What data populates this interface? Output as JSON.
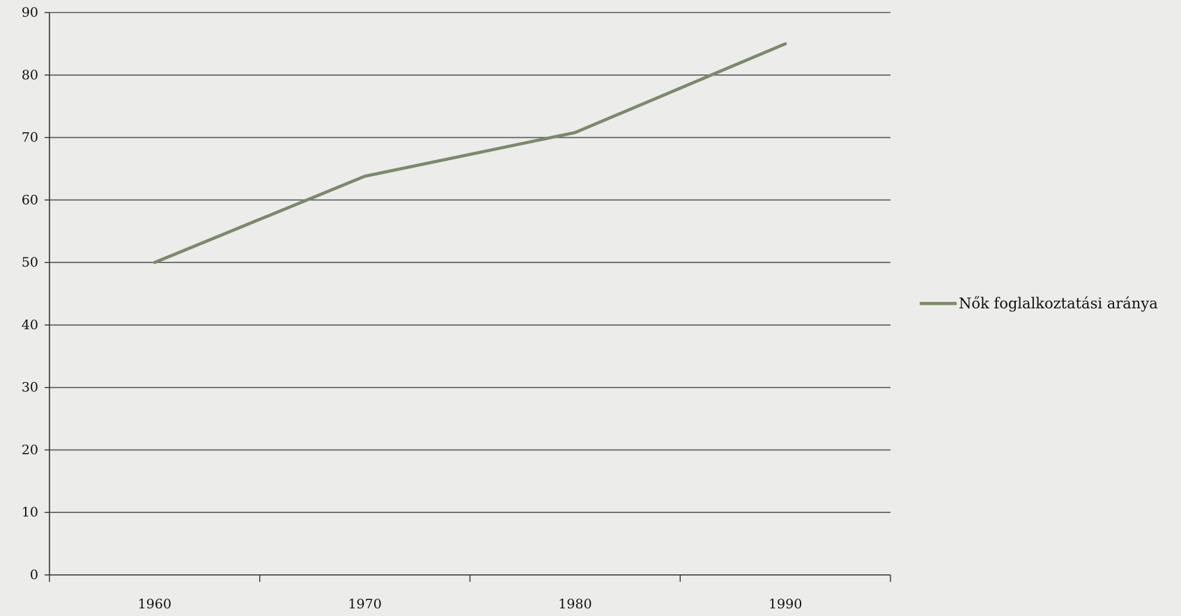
{
  "chart_data": {
    "type": "line",
    "title": "",
    "xlabel": "",
    "ylabel": "",
    "categories": [
      "1960",
      "1970",
      "1980",
      "1990"
    ],
    "series": [
      {
        "name": "Nők foglalkoztatási aránya",
        "color": "#7b8a6a",
        "values": [
          50,
          63.8,
          70.8,
          85
        ]
      }
    ],
    "ylim": [
      0,
      90
    ],
    "yticks": [
      0,
      10,
      20,
      30,
      40,
      50,
      60,
      70,
      80,
      90
    ],
    "grid": true,
    "legend_position": "right"
  }
}
